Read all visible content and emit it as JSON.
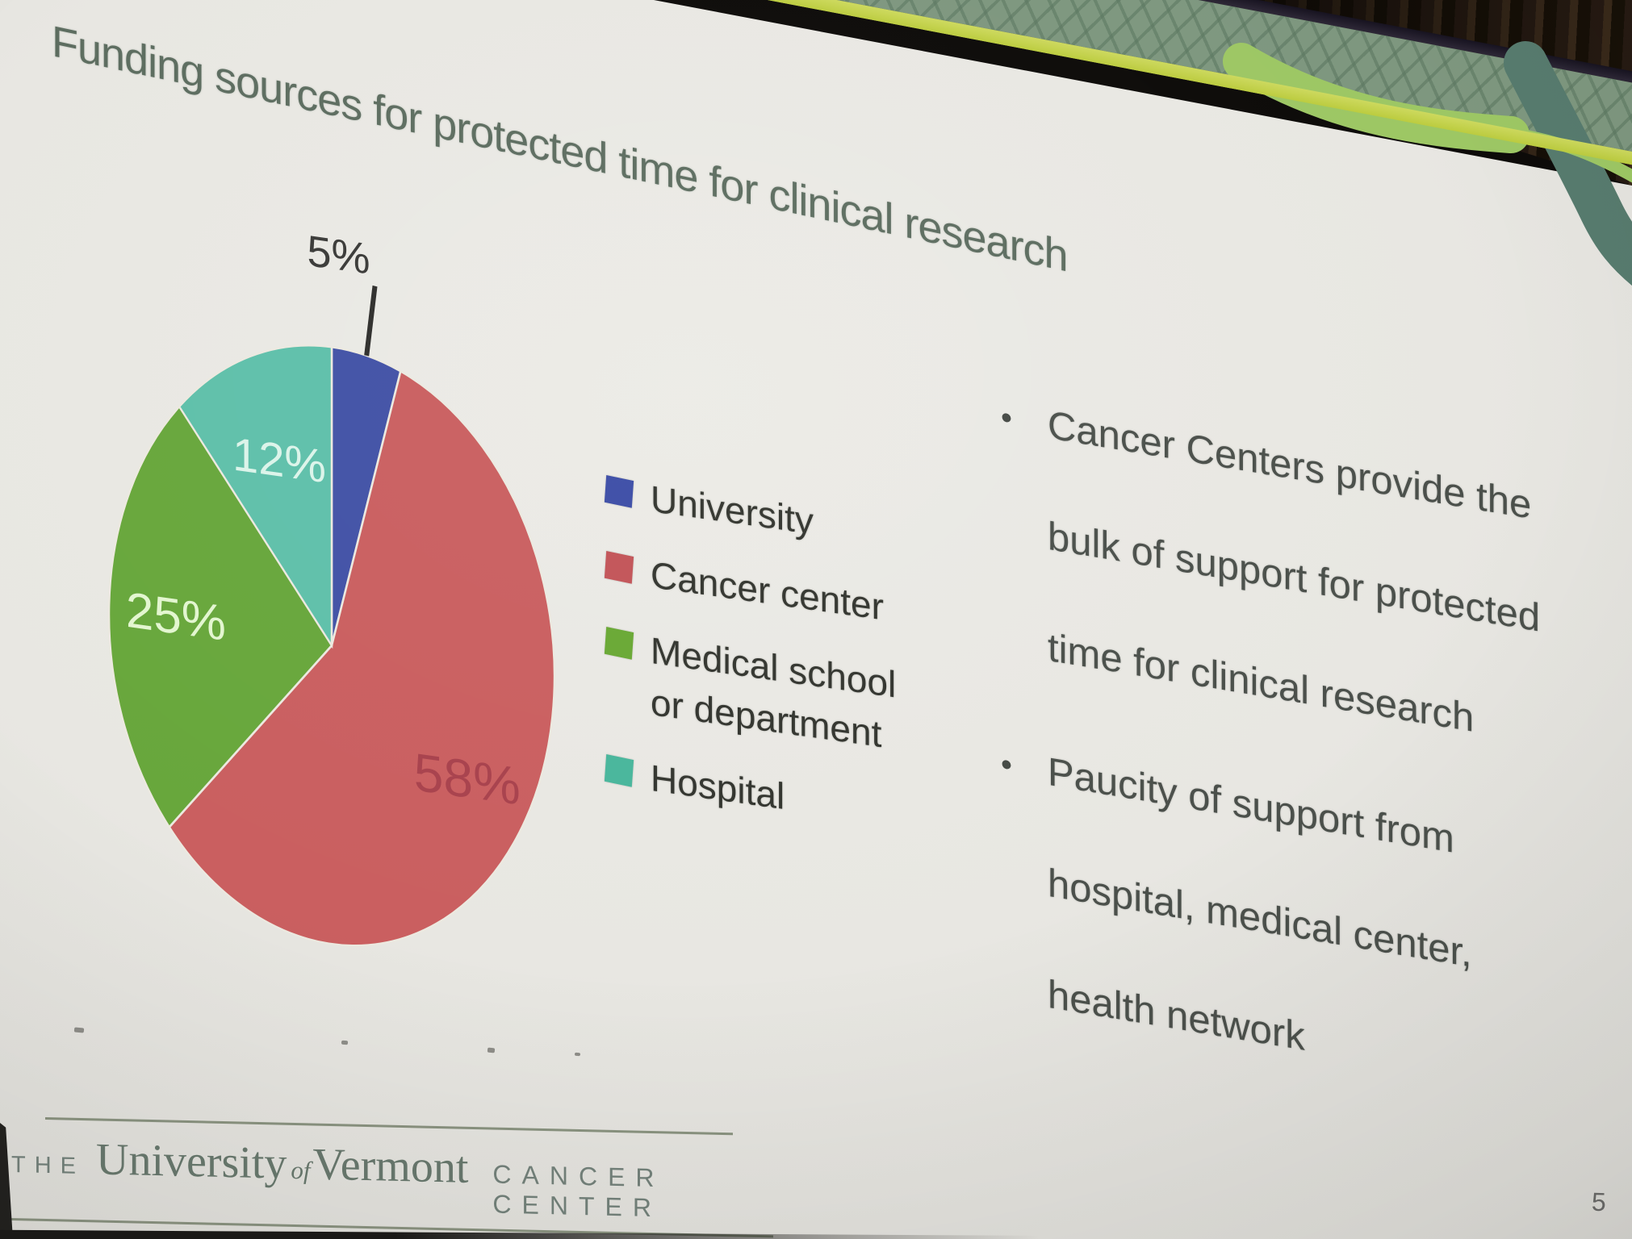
{
  "slide": {
    "title": "Funding sources for protected time for clinical research",
    "bullets": [
      {
        "lines": [
          "Cancer Centers provide the",
          "bulk of support for protected",
          "time for clinical research"
        ]
      },
      {
        "lines": [
          "Paucity of support from",
          "hospital, medical center,",
          "health network"
        ]
      }
    ],
    "page_number": "5",
    "footer_logo": {
      "prefix": "THE",
      "name_part1": "University",
      "name_of": "of",
      "name_part2": "Vermont",
      "suffix": "CANCER CENTER"
    }
  },
  "chart_data": {
    "type": "pie",
    "title": "Funding sources for protected time for clinical research",
    "unit": "%",
    "start_angle_deg": -90,
    "direction": "clockwise",
    "legend_position": "right-of-pie",
    "labels_shown": true,
    "slices": [
      {
        "label": "University",
        "value": 5,
        "display": "5%",
        "color": "#4252a6",
        "legend_color": "#3c4da6",
        "label_color": "#3a3a38",
        "label_placement": "outside"
      },
      {
        "label": "Cancer center",
        "value": 58,
        "display": "58%",
        "color": "#ca5f60",
        "legend_color": "#c25458",
        "label_color": "#a8424d",
        "label_placement": "inside"
      },
      {
        "label": "Medical school or department",
        "legend_lines": [
          "Medical school",
          "or department"
        ],
        "value": 25,
        "display": "25%",
        "color": "#68a73c",
        "legend_color": "#69a834",
        "label_color": "#e3f6d0",
        "label_placement": "inside"
      },
      {
        "label": "Hospital",
        "value": 12,
        "display": "12%",
        "color": "#5fc0aa",
        "legend_color": "#49b69c",
        "label_color": "#dbf4ea",
        "label_placement": "inside"
      }
    ]
  },
  "colors": {
    "slide_bg": "#e8e7e2",
    "title_text": "#5d6d60",
    "body_text": "#4b504b",
    "legend_text": "#33352f",
    "band_green": "#7e977f",
    "band_stripe_yellow": "#c3d24a",
    "bezel_dark": "#2b2531",
    "ribbon_light_green": "#9dc764",
    "ribbon_teal": "#577b6e",
    "room_dark": "#0d0b09",
    "curtain_brown": "#3a2a1a",
    "logo_text": "#6c7c71",
    "page_number_text": "#6b6b69",
    "leader_line": "#2e2e2c"
  }
}
